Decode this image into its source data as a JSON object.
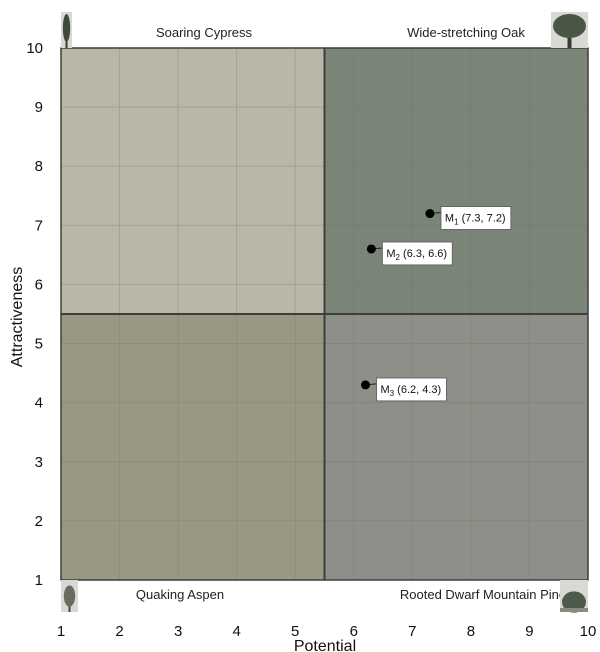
{
  "chart_data": {
    "type": "scatter",
    "title": "",
    "xlabel": "Potential",
    "ylabel": "Attractiveness",
    "xlim": [
      1,
      10
    ],
    "ylim": [
      1,
      10
    ],
    "x_ticks": [
      "1",
      "2",
      "3",
      "4",
      "5",
      "6",
      "7",
      "8",
      "9",
      "10"
    ],
    "y_ticks": [
      "1",
      "2",
      "3",
      "4",
      "5",
      "6",
      "7",
      "8",
      "9",
      "10"
    ],
    "grid": true,
    "divider": {
      "x": 5.5,
      "y": 5.5
    },
    "quadrants": [
      {
        "label": "Soaring Cypress",
        "position": "top-left",
        "color": "#b9b8a7",
        "icon": "cypress-tree-icon"
      },
      {
        "label": "Wide-stretching Oak",
        "position": "top-right",
        "color": "#7a8578",
        "icon": "oak-tree-icon"
      },
      {
        "label": "Quaking Aspen",
        "position": "bottom-left",
        "color": "#9a9885",
        "icon": "aspen-tree-icon"
      },
      {
        "label": "Rooted Dwarf Mountain Pine",
        "position": "bottom-right",
        "color": "#8f8f89",
        "icon": "dwarf-pine-tree-icon"
      }
    ],
    "points": [
      {
        "sub": "1",
        "x": 7.3,
        "y": 7.2,
        "label": "(7.3, 7.2)"
      },
      {
        "sub": "2",
        "x": 6.3,
        "y": 6.6,
        "label": "(6.3, 6.6)"
      },
      {
        "sub": "3",
        "x": 6.2,
        "y": 4.3,
        "label": "(6.2, 4.3)"
      }
    ],
    "point_prefix": "M"
  }
}
